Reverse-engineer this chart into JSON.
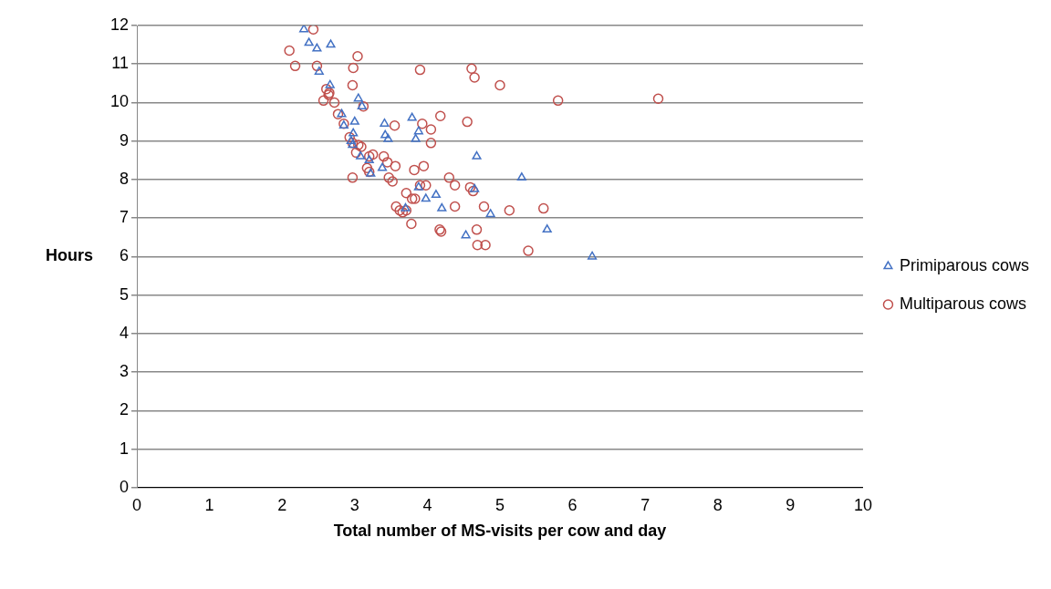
{
  "chart_data": {
    "type": "scatter",
    "xlabel": "Total number of MS-visits per cow and day",
    "ylabel": "Hours",
    "xlim": [
      0,
      10
    ],
    "xticks": [
      0,
      1,
      2,
      3,
      4,
      5,
      6,
      7,
      8,
      9,
      10
    ],
    "ylim": [
      0,
      12
    ],
    "yticks": [
      0,
      1,
      2,
      3,
      4,
      5,
      6,
      7,
      8,
      9,
      10,
      11,
      12
    ],
    "grid": "y",
    "legend": "right",
    "series": [
      {
        "name": "Primiparous cows",
        "color": "#4472c4",
        "marker": "triangle",
        "x": [
          2.3,
          2.37,
          2.48,
          2.67,
          2.51,
          2.66,
          3.05,
          3.1,
          2.82,
          2.85,
          3.0,
          2.98,
          2.97,
          3.79,
          3.41,
          3.42,
          3.46,
          3.88,
          3.84,
          3.08,
          3.2,
          3.22,
          3.38,
          4.68,
          5.3,
          3.88,
          4.65,
          3.98,
          4.12,
          4.2,
          4.87,
          3.7,
          4.53,
          5.65,
          6.27,
          2.95
        ],
        "values": [
          11.9,
          11.55,
          11.4,
          11.5,
          10.8,
          10.45,
          10.1,
          9.9,
          9.7,
          9.4,
          9.5,
          9.2,
          8.9,
          9.6,
          9.45,
          9.15,
          9.05,
          9.25,
          9.05,
          8.6,
          8.5,
          8.15,
          8.3,
          8.6,
          8.05,
          7.8,
          7.75,
          7.5,
          7.6,
          7.25,
          7.1,
          7.25,
          6.55,
          6.7,
          6.0,
          9.0
        ]
      },
      {
        "name": "Multiparous cows",
        "color": "#c0504d",
        "marker": "circle",
        "x": [
          2.43,
          2.1,
          2.18,
          2.48,
          3.04,
          2.98,
          3.9,
          4.61,
          4.65,
          5.0,
          2.97,
          2.61,
          2.65,
          2.64,
          2.57,
          2.72,
          3.12,
          5.8,
          7.18,
          2.77,
          4.18,
          3.93,
          4.05,
          4.55,
          2.85,
          3.55,
          2.93,
          2.97,
          3.05,
          3.09,
          4.05,
          3.02,
          3.2,
          3.25,
          3.4,
          3.45,
          3.56,
          3.82,
          3.95,
          3.17,
          3.2,
          2.97,
          3.47,
          3.52,
          4.3,
          4.38,
          3.9,
          3.98,
          3.71,
          3.79,
          3.83,
          4.59,
          4.63,
          4.78,
          5.13,
          5.6,
          4.38,
          3.57,
          3.62,
          3.66,
          3.71,
          3.78,
          4.17,
          4.19,
          4.68,
          4.69,
          4.8,
          5.39
        ],
        "values": [
          11.9,
          11.35,
          10.95,
          10.95,
          11.2,
          10.9,
          10.85,
          10.88,
          10.65,
          10.45,
          10.45,
          10.35,
          10.25,
          10.2,
          10.05,
          10.0,
          9.9,
          10.05,
          10.1,
          9.7,
          9.65,
          9.45,
          9.3,
          9.5,
          9.45,
          9.4,
          9.1,
          8.95,
          8.9,
          8.85,
          8.95,
          8.7,
          8.6,
          8.65,
          8.6,
          8.45,
          8.35,
          8.25,
          8.35,
          8.3,
          8.2,
          8.05,
          8.05,
          7.95,
          8.05,
          7.85,
          7.85,
          7.85,
          7.65,
          7.5,
          7.5,
          7.8,
          7.7,
          7.3,
          7.2,
          7.25,
          7.3,
          7.3,
          7.2,
          7.15,
          7.2,
          6.85,
          6.7,
          6.65,
          6.7,
          6.3,
          6.3,
          6.15
        ]
      }
    ]
  }
}
